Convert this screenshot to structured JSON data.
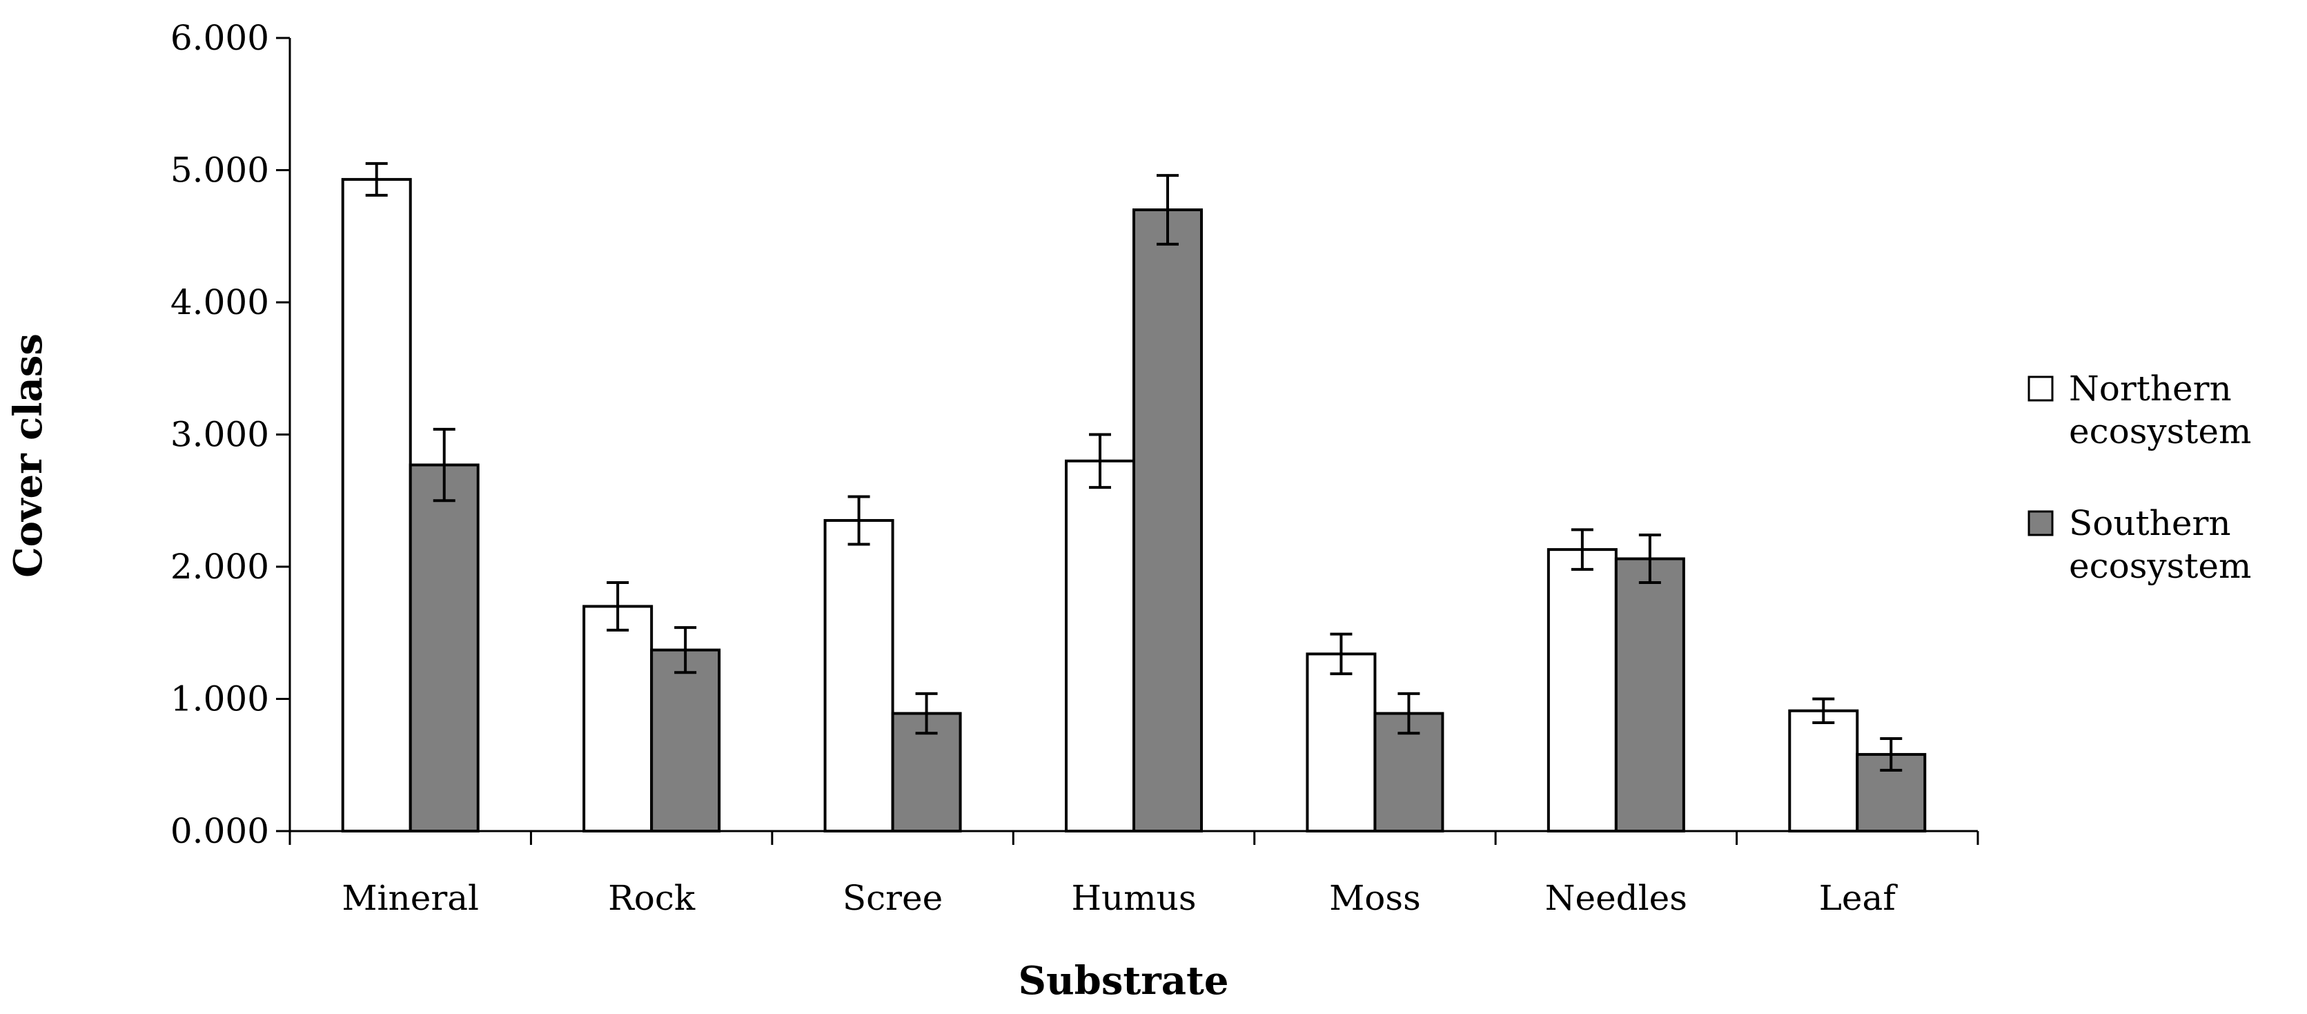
{
  "chart_data": {
    "type": "bar",
    "title": "",
    "xlabel": "Substrate",
    "ylabel": "Cover class",
    "ylim": [
      0,
      6
    ],
    "yticks": [
      "0.000",
      "1.000",
      "2.000",
      "3.000",
      "4.000",
      "5.000",
      "6.000"
    ],
    "categories": [
      "Mineral",
      "Rock",
      "Scree",
      "Humus",
      "Moss",
      "Needles",
      "Leaf"
    ],
    "series": [
      {
        "name": "Northern ecosystem",
        "name_lines": [
          "Northern",
          "ecosystem"
        ],
        "color": "#ffffff",
        "values": [
          4.93,
          1.7,
          2.35,
          2.8,
          1.34,
          2.13,
          0.91
        ],
        "errors": [
          0.12,
          0.18,
          0.18,
          0.2,
          0.15,
          0.15,
          0.09
        ]
      },
      {
        "name": "Southern ecosystem",
        "name_lines": [
          "Southern",
          "ecosystem"
        ],
        "color": "#808080",
        "values": [
          2.77,
          1.37,
          0.89,
          4.7,
          0.89,
          2.06,
          0.58
        ],
        "errors": [
          0.27,
          0.17,
          0.15,
          0.26,
          0.15,
          0.18,
          0.12
        ]
      }
    ],
    "legend_position": "right"
  }
}
